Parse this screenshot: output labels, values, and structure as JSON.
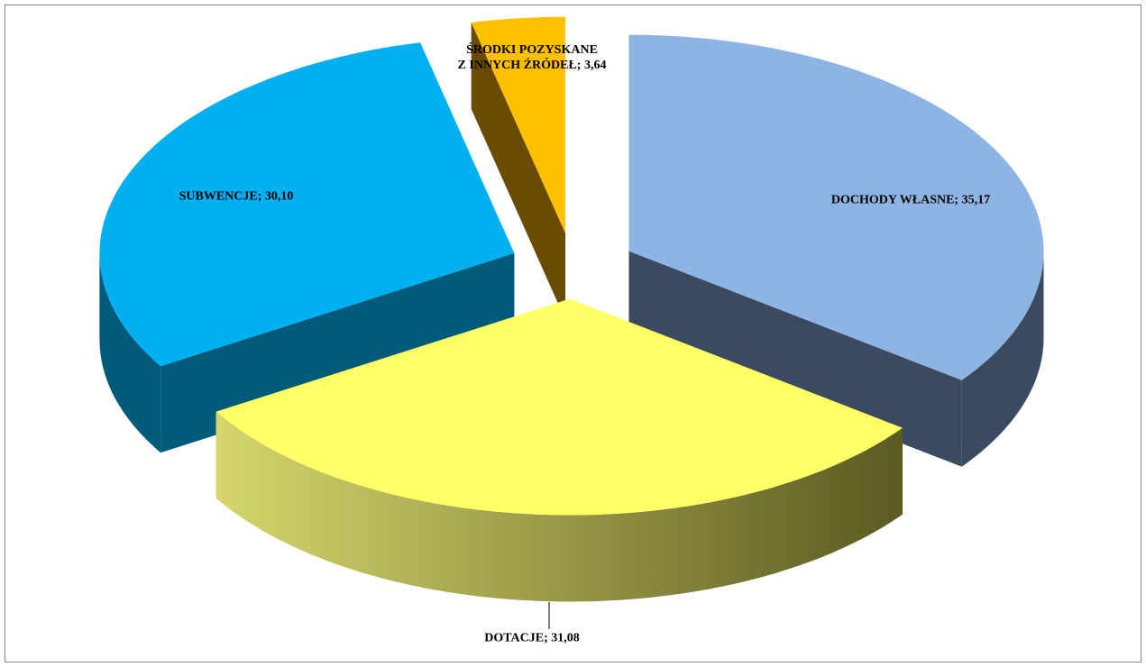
{
  "chart_data": {
    "type": "pie",
    "values": [
      35.17,
      31.08,
      30.1,
      3.64
    ],
    "value_labels": [
      "DOCHODY WŁASNE; 35,17",
      "DOTACJE; 31,08",
      "SUBWENCJE; 30,10",
      "ŚRODKI POZYSKANE\nZ INNYCH ŹRÓDEŁ; 3,64"
    ],
    "colors": [
      "#8eb4e3",
      "#ffff66",
      "#00b0f0",
      "#ffc000"
    ]
  }
}
